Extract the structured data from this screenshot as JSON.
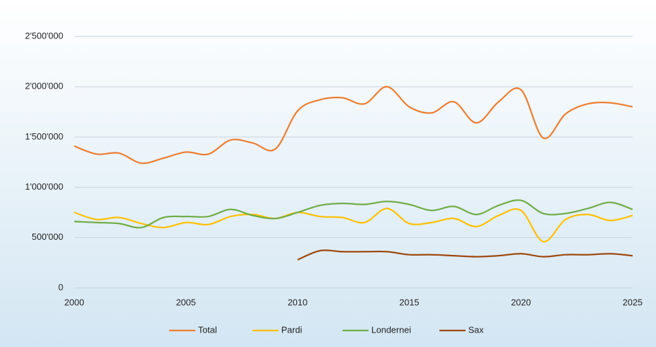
{
  "chart_data": {
    "type": "line",
    "x": [
      2000,
      2001,
      2002,
      2003,
      2004,
      2005,
      2006,
      2007,
      2008,
      2009,
      2010,
      2011,
      2012,
      2013,
      2014,
      2015,
      2016,
      2017,
      2018,
      2019,
      2020,
      2021,
      2022,
      2023,
      2024,
      2025
    ],
    "series": [
      {
        "name": "Total",
        "color": "#ed7d31",
        "values": [
          1410000,
          1330000,
          1340000,
          1240000,
          1290000,
          1350000,
          1330000,
          1470000,
          1440000,
          1380000,
          1760000,
          1870000,
          1890000,
          1830000,
          2000000,
          1800000,
          1740000,
          1850000,
          1640000,
          1850000,
          1970000,
          1490000,
          1730000,
          1830000,
          1840000,
          1800000
        ]
      },
      {
        "name": "Pardi",
        "color": "#ffc000",
        "values": [
          750000,
          680000,
          700000,
          640000,
          600000,
          650000,
          630000,
          710000,
          730000,
          690000,
          750000,
          710000,
          700000,
          650000,
          790000,
          640000,
          650000,
          690000,
          610000,
          720000,
          770000,
          460000,
          680000,
          730000,
          670000,
          720000
        ]
      },
      {
        "name": "Londernei",
        "color": "#70ad47",
        "values": [
          660000,
          650000,
          640000,
          600000,
          700000,
          710000,
          710000,
          780000,
          720000,
          690000,
          750000,
          820000,
          840000,
          830000,
          860000,
          830000,
          770000,
          810000,
          730000,
          820000,
          870000,
          740000,
          740000,
          790000,
          850000,
          780000
        ]
      },
      {
        "name": "Sax",
        "color": "#9e480e",
        "values": [
          null,
          null,
          null,
          null,
          null,
          null,
          null,
          null,
          null,
          null,
          280000,
          370000,
          360000,
          360000,
          360000,
          330000,
          330000,
          320000,
          310000,
          320000,
          340000,
          310000,
          330000,
          330000,
          340000,
          320000
        ]
      }
    ],
    "xlim": [
      2000,
      2025
    ],
    "xticks": [
      2000,
      2005,
      2010,
      2015,
      2020,
      2025
    ],
    "ylim": [
      0,
      2500000
    ],
    "yticks": [
      {
        "value": 0,
        "label": "0"
      },
      {
        "value": 500000,
        "label": "500'000"
      },
      {
        "value": 1000000,
        "label": "1'000'000"
      },
      {
        "value": 1500000,
        "label": "1'500'000"
      },
      {
        "value": 2000000,
        "label": "2'000'000"
      },
      {
        "value": 2500000,
        "label": "2'500'000"
      }
    ],
    "grid": true,
    "legend": "bottom"
  }
}
